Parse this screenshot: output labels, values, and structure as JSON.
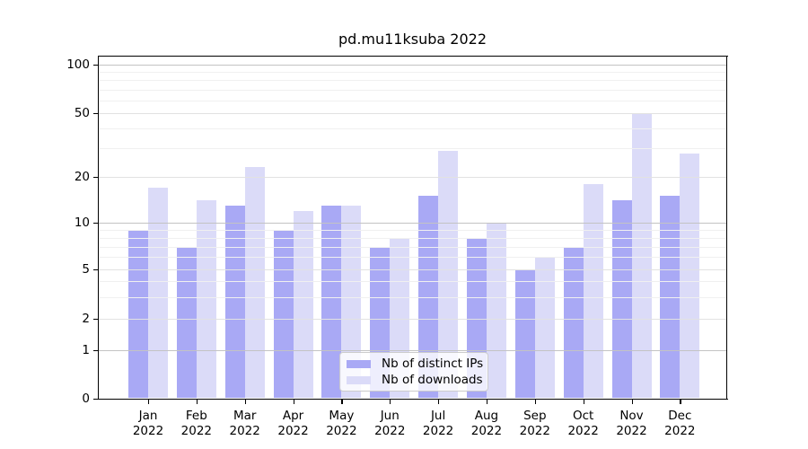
{
  "title": "pd.mu11ksuba 2022",
  "colors": {
    "distinct_ips": "#a9a9f5",
    "downloads": "#dbdbf8",
    "grid_major": "#c3c3c3",
    "grid_mid": "#e2e2e2",
    "grid_minor": "#f0f0f0",
    "spine": "#000000"
  },
  "legend": {
    "items": [
      {
        "label": "Nb of distinct IPs",
        "color_key": "distinct_ips"
      },
      {
        "label": "Nb of downloads",
        "color_key": "downloads"
      }
    ]
  },
  "y_axis": {
    "scale": "symlog",
    "tick_labels": [
      "100",
      "50",
      "20",
      "10",
      "5",
      "2",
      "1",
      "0"
    ],
    "tick_values": [
      100,
      50,
      20,
      10,
      5,
      2,
      1,
      0
    ],
    "minor_gridline_values": [
      3,
      4,
      6,
      7,
      8,
      9,
      30,
      40,
      60,
      70,
      80,
      90
    ]
  },
  "x_axis": {
    "months": [
      "Jan",
      "Feb",
      "Mar",
      "Apr",
      "May",
      "Jun",
      "Jul",
      "Aug",
      "Sep",
      "Oct",
      "Nov",
      "Dec"
    ],
    "year": "2022"
  },
  "chart_data": {
    "type": "bar",
    "categories": [
      "Jan 2022",
      "Feb 2022",
      "Mar 2022",
      "Apr 2022",
      "May 2022",
      "Jun 2022",
      "Jul 2022",
      "Aug 2022",
      "Sep 2022",
      "Oct 2022",
      "Nov 2022",
      "Dec 2022"
    ],
    "series": [
      {
        "name": "Nb of distinct IPs",
        "values": [
          9,
          7,
          13,
          9,
          13,
          7,
          15,
          8,
          5,
          7,
          14,
          15
        ]
      },
      {
        "name": "Nb of downloads",
        "values": [
          17,
          14,
          23,
          12,
          13,
          8,
          29,
          10,
          6,
          18,
          50,
          28
        ]
      }
    ],
    "title": "pd.mu11ksuba 2022",
    "xlabel": "",
    "ylabel": "",
    "yticks": [
      0,
      1,
      2,
      5,
      10,
      20,
      50,
      100
    ],
    "ylim": [
      0,
      112
    ],
    "grid": true,
    "grid_on_top": true,
    "legend_position": "lower center inside"
  }
}
